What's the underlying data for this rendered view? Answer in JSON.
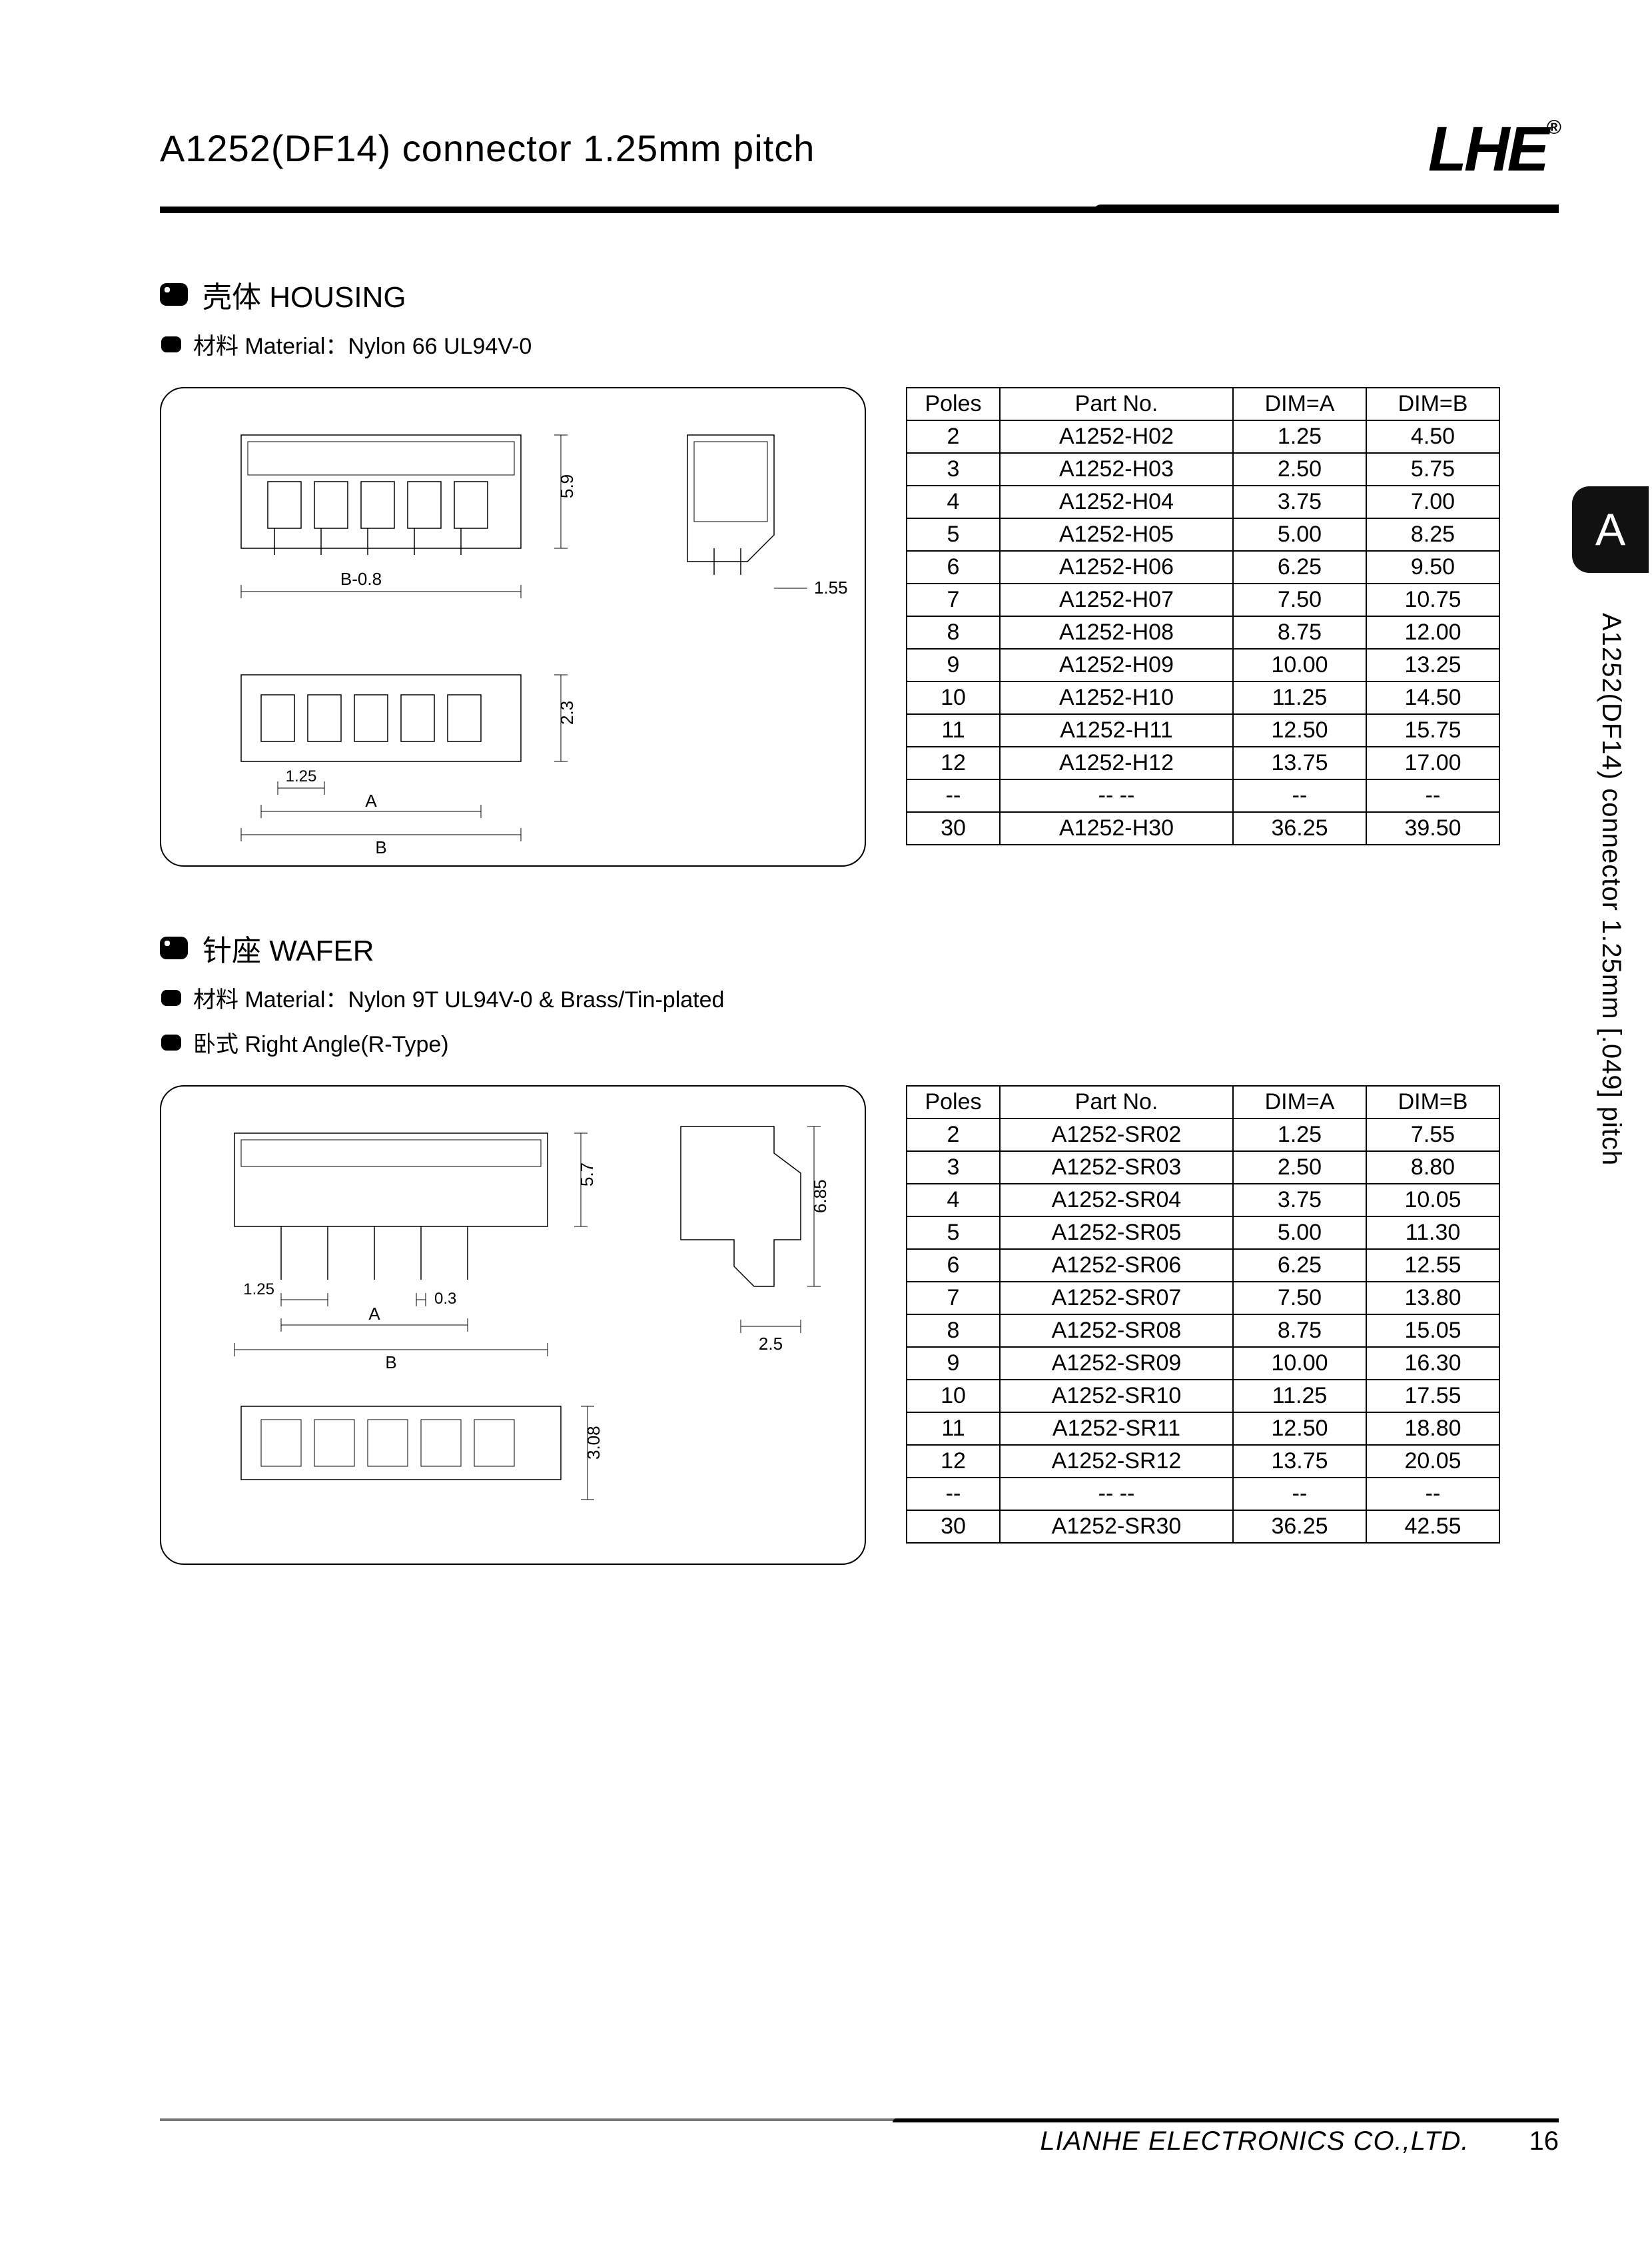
{
  "header": {
    "title": "A1252(DF14) connector 1.25mm pitch",
    "logo": "LHE",
    "logo_reg": "®"
  },
  "side_tab": {
    "letter": "A",
    "vertical_text": "A1252(DF14) connector 1.25mm [.049] pitch"
  },
  "housing": {
    "heading": "壳体 HOUSING",
    "material": "材料 Material：Nylon 66 UL94V-0",
    "dims": {
      "pitch": "1.25",
      "bminus": "B-0.8",
      "h": "5.9",
      "side": "1.55",
      "h2": "2.3",
      "a": "A",
      "b": "B"
    },
    "table": {
      "columns": [
        "Poles",
        "Part No.",
        "DIM=A",
        "DIM=B"
      ],
      "rows": [
        [
          "2",
          "A1252-H02",
          "1.25",
          "4.50"
        ],
        [
          "3",
          "A1252-H03",
          "2.50",
          "5.75"
        ],
        [
          "4",
          "A1252-H04",
          "3.75",
          "7.00"
        ],
        [
          "5",
          "A1252-H05",
          "5.00",
          "8.25"
        ],
        [
          "6",
          "A1252-H06",
          "6.25",
          "9.50"
        ],
        [
          "7",
          "A1252-H07",
          "7.50",
          "10.75"
        ],
        [
          "8",
          "A1252-H08",
          "8.75",
          "12.00"
        ],
        [
          "9",
          "A1252-H09",
          "10.00",
          "13.25"
        ],
        [
          "10",
          "A1252-H10",
          "11.25",
          "14.50"
        ],
        [
          "11",
          "A1252-H11",
          "12.50",
          "15.75"
        ],
        [
          "12",
          "A1252-H12",
          "13.75",
          "17.00"
        ],
        [
          "--",
          "-- --",
          "--",
          "--"
        ],
        [
          "30",
          "A1252-H30",
          "36.25",
          "39.50"
        ]
      ]
    }
  },
  "wafer": {
    "heading": "针座 WAFER",
    "material": "材料 Material：Nylon 9T UL94V-0 & Brass/Tin-plated",
    "type": "卧式 Right Angle(R-Type)",
    "dims": {
      "pitch": "1.25",
      "lead": "0.3",
      "h": "5.7",
      "overall_h": "6.85",
      "side": "2.5",
      "h2": "3.08",
      "a": "A",
      "b": "B"
    },
    "table": {
      "columns": [
        "Poles",
        "Part No.",
        "DIM=A",
        "DIM=B"
      ],
      "rows": [
        [
          "2",
          "A1252-SR02",
          "1.25",
          "7.55"
        ],
        [
          "3",
          "A1252-SR03",
          "2.50",
          "8.80"
        ],
        [
          "4",
          "A1252-SR04",
          "3.75",
          "10.05"
        ],
        [
          "5",
          "A1252-SR05",
          "5.00",
          "11.30"
        ],
        [
          "6",
          "A1252-SR06",
          "6.25",
          "12.55"
        ],
        [
          "7",
          "A1252-SR07",
          "7.50",
          "13.80"
        ],
        [
          "8",
          "A1252-SR08",
          "8.75",
          "15.05"
        ],
        [
          "9",
          "A1252-SR09",
          "10.00",
          "16.30"
        ],
        [
          "10",
          "A1252-SR10",
          "11.25",
          "17.55"
        ],
        [
          "11",
          "A1252-SR11",
          "12.50",
          "18.80"
        ],
        [
          "12",
          "A1252-SR12",
          "13.75",
          "20.05"
        ],
        [
          "--",
          "-- --",
          "--",
          "--"
        ],
        [
          "30",
          "A1252-SR30",
          "36.25",
          "42.55"
        ]
      ]
    }
  },
  "footer": {
    "company": "LIANHE ELECTRONICS CO.,LTD.",
    "page": "16"
  },
  "colors": {
    "text": "#000000",
    "bg": "#ffffff",
    "rule": "#000000"
  }
}
